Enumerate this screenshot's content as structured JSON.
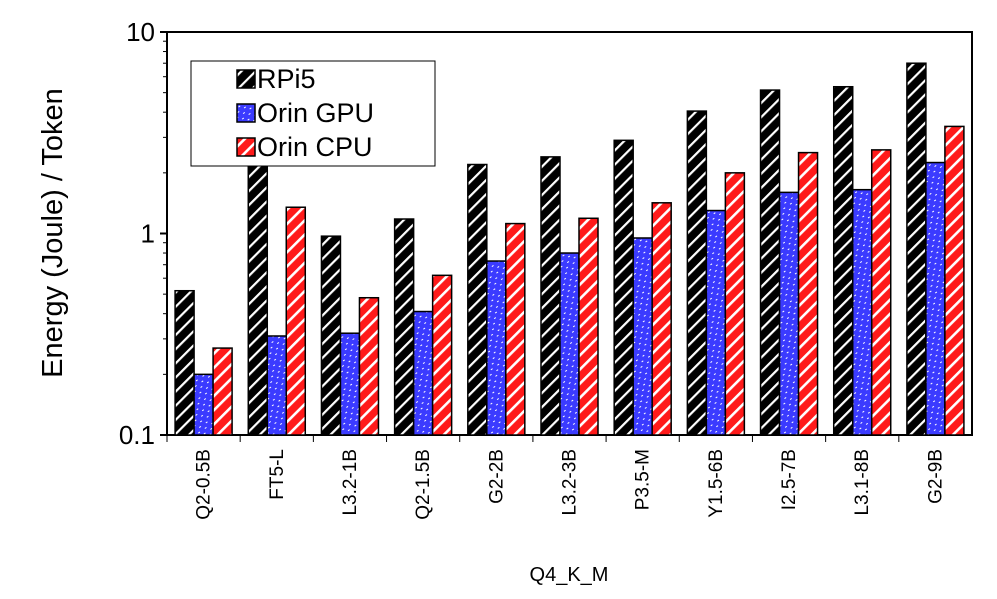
{
  "chart_data": {
    "type": "bar",
    "title": "",
    "xlabel": "Q4_K_M",
    "ylabel": "Energy (Joule) / Token",
    "yscale": "log",
    "ylim": [
      0.1,
      10
    ],
    "yticks": [
      "0.1",
      "1",
      "10"
    ],
    "legend_position": "top-left",
    "categories": [
      "Q2-0.5B",
      "FT5-L",
      "L3.2-1B",
      "Q2-1.5B",
      "G2-2B",
      "L3.2-3B",
      "P3.5-M",
      "Y1.5-6B",
      "I2.5-7B",
      "L3.1-8B",
      "G2-9B"
    ],
    "series": [
      {
        "name": "RPi5",
        "color": "#000000",
        "values": [
          0.52,
          2.2,
          0.97,
          1.18,
          2.2,
          2.4,
          2.9,
          4.05,
          5.15,
          5.35,
          7.0
        ]
      },
      {
        "name": "Orin GPU",
        "color": "#3b3bff",
        "values": [
          0.2,
          0.31,
          0.32,
          0.41,
          0.73,
          0.8,
          0.95,
          1.3,
          1.6,
          1.65,
          2.25
        ]
      },
      {
        "name": "Orin CPU",
        "color": "#ff1a1a",
        "values": [
          0.27,
          1.35,
          0.48,
          0.62,
          1.12,
          1.19,
          1.42,
          2.0,
          2.52,
          2.6,
          3.4
        ]
      }
    ]
  }
}
